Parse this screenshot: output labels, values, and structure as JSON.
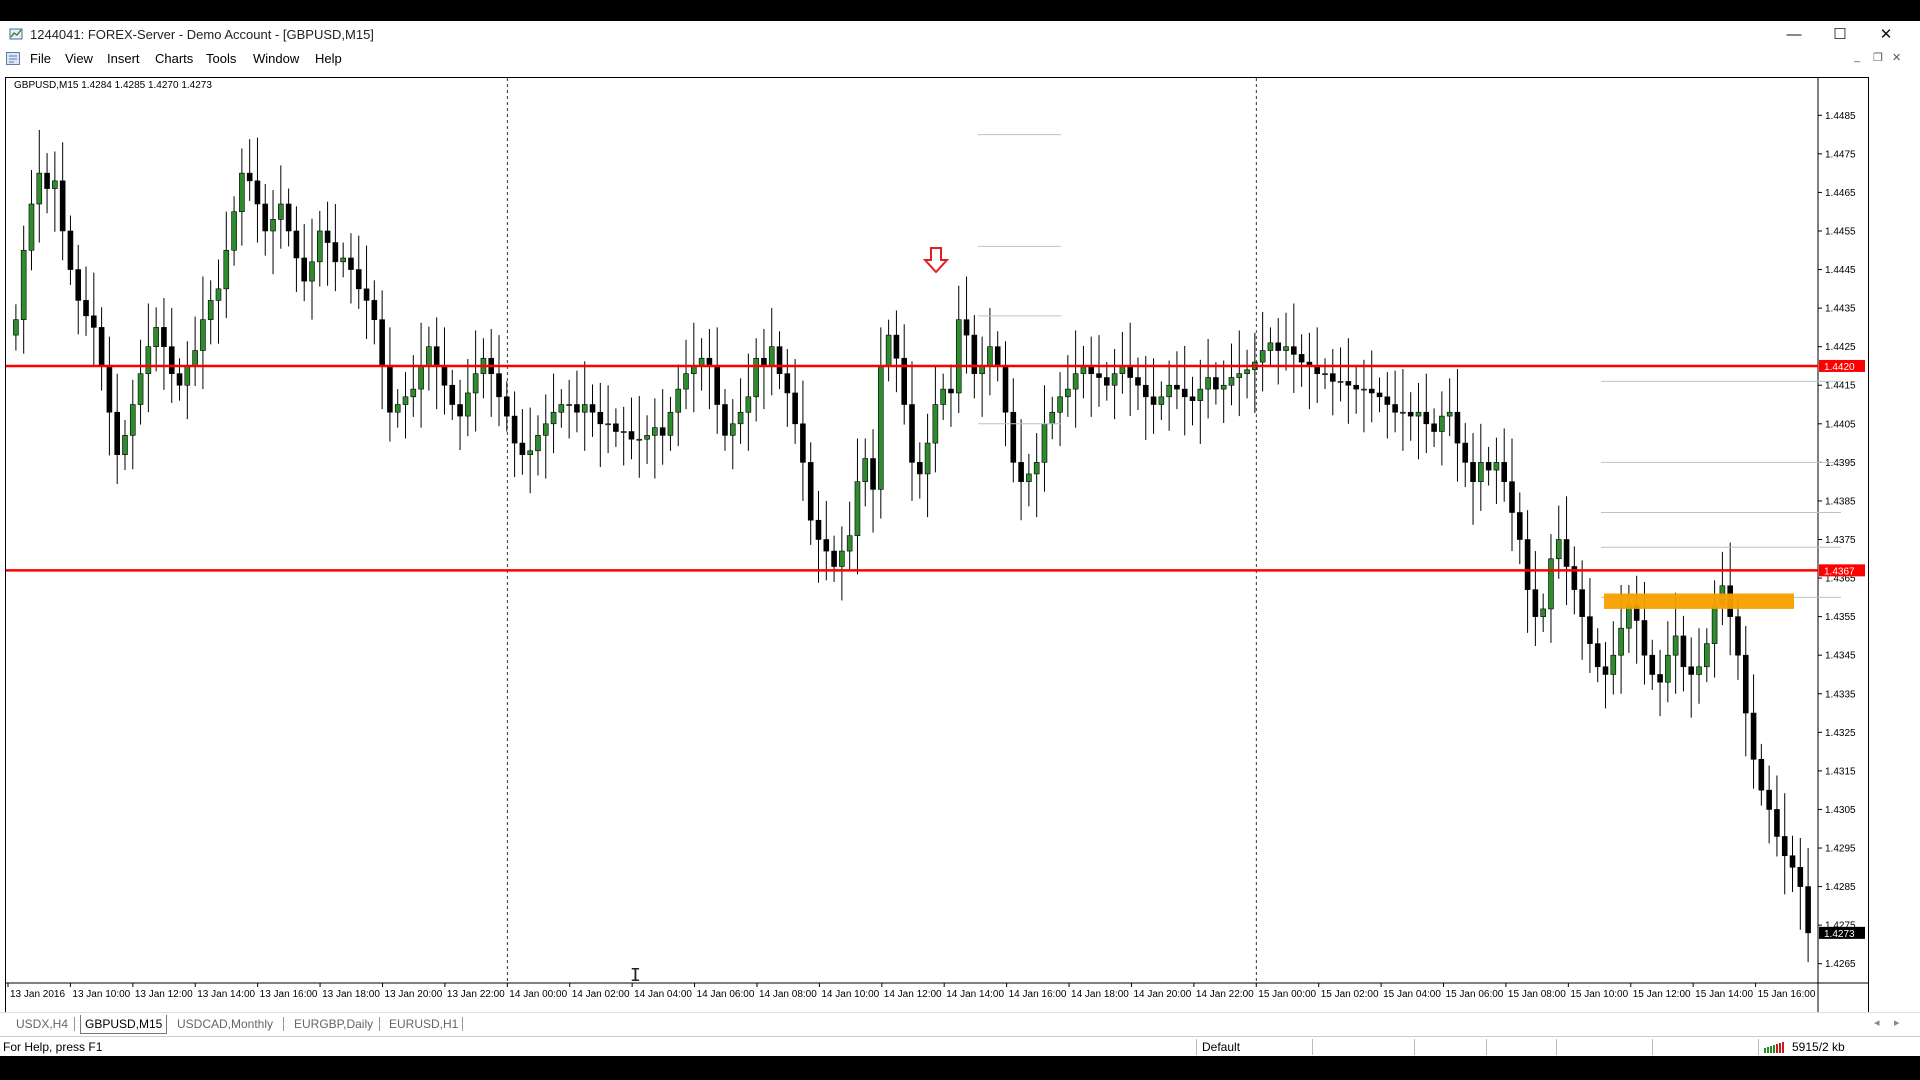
{
  "window": {
    "title": "1244041: FOREX-Server - Demo Account - [GBPUSD,M15]",
    "controls": {
      "minimize": "—",
      "maximize": "☐",
      "close": "✕"
    }
  },
  "menu": {
    "items": [
      "File",
      "View",
      "Insert",
      "Charts",
      "Tools",
      "Window",
      "Help"
    ],
    "mdi_controls": {
      "minimize": "_",
      "restore": "❐",
      "close": "✕"
    }
  },
  "chart": {
    "header": "GBPUSD,M15  1.4284 1.4285 1.4270 1.4273",
    "colors": {
      "bull": "#2e8b2e",
      "bear": "#000000",
      "level_line": "#ff0000",
      "zone": "#f5a000",
      "fib": "#b8c4cc",
      "arrow": "#e02020"
    }
  },
  "chart_data": {
    "type": "candlestick",
    "symbol": "GBPUSD",
    "timeframe": "M15",
    "ohlc_last": {
      "open": 1.4284,
      "high": 1.4285,
      "low": 1.427,
      "close": 1.4273
    },
    "ylim": [
      1.426,
      1.449
    ],
    "y_ticks": [
      "1.4485",
      "1.4475",
      "1.4465",
      "1.4455",
      "1.4445",
      "1.4435",
      "1.4425",
      "1.4415",
      "1.4405",
      "1.4395",
      "1.4385",
      "1.4375",
      "1.4365",
      "1.4355",
      "1.4345",
      "1.4335",
      "1.4325",
      "1.4315",
      "1.4305",
      "1.4295",
      "1.4285",
      "1.4275",
      "1.4265"
    ],
    "x_ticks": [
      "13 Jan 2016",
      "13 Jan 10:00",
      "13 Jan 12:00",
      "13 Jan 14:00",
      "13 Jan 16:00",
      "13 Jan 18:00",
      "13 Jan 20:00",
      "13 Jan 22:00",
      "14 Jan 00:00",
      "14 Jan 02:00",
      "14 Jan 04:00",
      "14 Jan 06:00",
      "14 Jan 08:00",
      "14 Jan 10:00",
      "14 Jan 12:00",
      "14 Jan 14:00",
      "14 Jan 16:00",
      "14 Jan 18:00",
      "14 Jan 20:00",
      "14 Jan 22:00",
      "15 Jan 00:00",
      "15 Jan 02:00",
      "15 Jan 04:00",
      "15 Jan 06:00",
      "15 Jan 08:00",
      "15 Jan 10:00",
      "15 Jan 12:00",
      "15 Jan 14:00",
      "15 Jan 16:00"
    ],
    "horizontal_levels": [
      {
        "price": 1.442,
        "label": "1.4420"
      },
      {
        "price": 1.4367,
        "label": "1.4367"
      }
    ],
    "current_price_label": "1.4273",
    "day_separators": [
      "14 Jan 00:00",
      "15 Jan 00:00"
    ],
    "series": [
      {
        "name": "close",
        "values": [
          1.4432,
          1.445,
          1.4462,
          1.447,
          1.4466,
          1.4468,
          1.4455,
          1.4445,
          1.4437,
          1.4433,
          1.443,
          1.442,
          1.4408,
          1.4397,
          1.4402,
          1.441,
          1.4418,
          1.4425,
          1.443,
          1.4425,
          1.4418,
          1.4415,
          1.442,
          1.4424,
          1.4432,
          1.4437,
          1.444,
          1.445,
          1.446,
          1.447,
          1.4468,
          1.4462,
          1.4455,
          1.4458,
          1.4462,
          1.4455,
          1.4448,
          1.4442,
          1.4447,
          1.4455,
          1.4452,
          1.4447,
          1.4448,
          1.4445,
          1.444,
          1.4437,
          1.4432,
          1.442,
          1.4408,
          1.441,
          1.4412,
          1.4414,
          1.442,
          1.4425,
          1.442,
          1.4415,
          1.441,
          1.4407,
          1.4413,
          1.4418,
          1.4422,
          1.4418,
          1.4412,
          1.4407,
          1.44,
          1.4397,
          1.4398,
          1.4402,
          1.4405,
          1.4408,
          1.441,
          1.441,
          1.4408,
          1.441,
          1.4408,
          1.4405,
          1.4405,
          1.4403,
          1.4403,
          1.4401,
          1.4401,
          1.4402,
          1.4404,
          1.4402,
          1.4408,
          1.4414,
          1.4418,
          1.442,
          1.4422,
          1.442,
          1.441,
          1.4402,
          1.4405,
          1.4408,
          1.4412,
          1.4422,
          1.442,
          1.4425,
          1.4418,
          1.4413,
          1.4405,
          1.4395,
          1.438,
          1.4375,
          1.4372,
          1.4368,
          1.4372,
          1.4376,
          1.439,
          1.4396,
          1.4388,
          1.442,
          1.4428,
          1.4422,
          1.441,
          1.4395,
          1.4392,
          1.44,
          1.441,
          1.4414,
          1.4413,
          1.4432,
          1.4428,
          1.4418,
          1.442,
          1.4425,
          1.442,
          1.4408,
          1.4395,
          1.439,
          1.4392,
          1.4395,
          1.4405,
          1.4408,
          1.4412,
          1.4414,
          1.4418,
          1.442,
          1.4418,
          1.4417,
          1.4415,
          1.4418,
          1.442,
          1.4417,
          1.4415,
          1.4412,
          1.441,
          1.4412,
          1.4415,
          1.4414,
          1.4412,
          1.4411,
          1.4414,
          1.4417,
          1.4414,
          1.4415,
          1.4417,
          1.4418,
          1.4419,
          1.4421,
          1.4424,
          1.4426,
          1.4424,
          1.4425,
          1.4423,
          1.4421,
          1.442,
          1.4418,
          1.4418,
          1.4416,
          1.4416,
          1.4415,
          1.4414,
          1.4414,
          1.4413,
          1.4412,
          1.441,
          1.4408,
          1.4408,
          1.4407,
          1.4408,
          1.4405,
          1.4403,
          1.4407,
          1.4408,
          1.44,
          1.4395,
          1.439,
          1.4395,
          1.4393,
          1.4395,
          1.439,
          1.4382,
          1.4375,
          1.4362,
          1.4355,
          1.4357,
          1.437,
          1.4375,
          1.4368,
          1.4362,
          1.4355,
          1.4348,
          1.4342,
          1.434,
          1.4345,
          1.4352,
          1.4358,
          1.4354,
          1.4345,
          1.434,
          1.4338,
          1.4345,
          1.435,
          1.4342,
          1.434,
          1.4342,
          1.4348,
          1.4358,
          1.4363,
          1.4355,
          1.4345,
          1.433,
          1.4318,
          1.431,
          1.4305,
          1.4298,
          1.4293,
          1.429,
          1.4285,
          1.4273
        ]
      }
    ]
  },
  "tabs": {
    "items": [
      "USDX,H4",
      "GBPUSD,M15",
      "USDCAD,Monthly",
      "EURGBP,Daily",
      "EURUSD,H1"
    ],
    "active": 1,
    "scroll_left": "◂",
    "scroll_right": "▸"
  },
  "status": {
    "help": "For Help, press F1",
    "profile": "Default",
    "traffic": "5915/2 kb"
  },
  "icons": {
    "app": "app-icon",
    "menu": "chart-window-icon",
    "connection": "connection-bars-icon"
  }
}
